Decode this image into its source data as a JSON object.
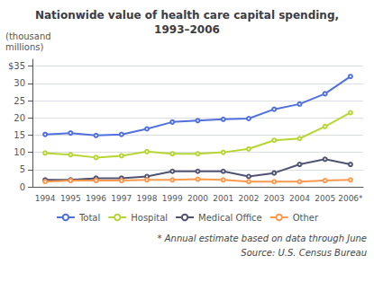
{
  "chart_data": {
    "type": "line",
    "title": "Nationwide value of health care capital spending,\n1993–2006",
    "y_label": "(thousand\nmillions)",
    "annotations": [
      "* Annual estimate based on data through June",
      "Source: U.S. Census Bureau"
    ],
    "categories": [
      "1994",
      "1995",
      "1996",
      "1997",
      "1998",
      "1999",
      "2000",
      "2001",
      "2002",
      "2003",
      "2004",
      "2005",
      "2006*"
    ],
    "series": [
      {
        "name": "Total",
        "values": [
          15.2,
          15.6,
          14.9,
          15.2,
          16.8,
          18.8,
          19.2,
          19.6,
          19.8,
          22.5,
          24.0,
          27.0,
          32.0
        ]
      },
      {
        "name": "Hospital",
        "values": [
          9.8,
          9.3,
          8.5,
          9.0,
          10.2,
          9.6,
          9.6,
          10.0,
          11.0,
          13.5,
          14.0,
          17.5,
          21.5
        ]
      },
      {
        "name": "Medical Office",
        "values": [
          2.0,
          2.0,
          2.5,
          2.5,
          3.0,
          4.5,
          4.5,
          4.5,
          3.0,
          4.0,
          6.5,
          8.0,
          6.5
        ]
      },
      {
        "name": "Other",
        "values": [
          1.5,
          1.8,
          1.8,
          1.8,
          2.0,
          2.0,
          2.2,
          2.0,
          1.5,
          1.5,
          1.5,
          1.8,
          2.0
        ]
      }
    ],
    "ylim": [
      0,
      37
    ],
    "yticks": [
      0,
      5,
      10,
      15,
      20,
      25,
      30,
      {
        "value": 35,
        "label": "$35"
      }
    ],
    "grid": true,
    "legend": "bottom"
  }
}
